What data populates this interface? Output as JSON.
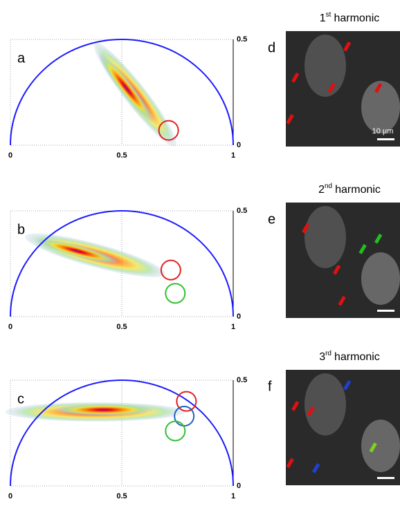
{
  "panels": [
    {
      "letter": "a",
      "xticks": [
        "0",
        "0.5",
        "1"
      ],
      "yticks": [
        "0.5",
        "0"
      ],
      "image": {
        "letter": "d",
        "ordinal": "1",
        "suffix": "st",
        "title": "harmonic",
        "scale_label": "10 µm"
      }
    },
    {
      "letter": "b",
      "xticks": [
        "0",
        "0.5",
        "1"
      ],
      "yticks": [
        "0.5",
        "0"
      ],
      "image": {
        "letter": "e",
        "ordinal": "2",
        "suffix": "nd",
        "title": "harmonic"
      }
    },
    {
      "letter": "c",
      "xticks": [
        "0",
        "0.5",
        "1"
      ],
      "yticks": [
        "0.5",
        "0"
      ],
      "image": {
        "letter": "f",
        "ordinal": "3",
        "suffix": "rd",
        "title": "harmonic"
      }
    }
  ]
}
